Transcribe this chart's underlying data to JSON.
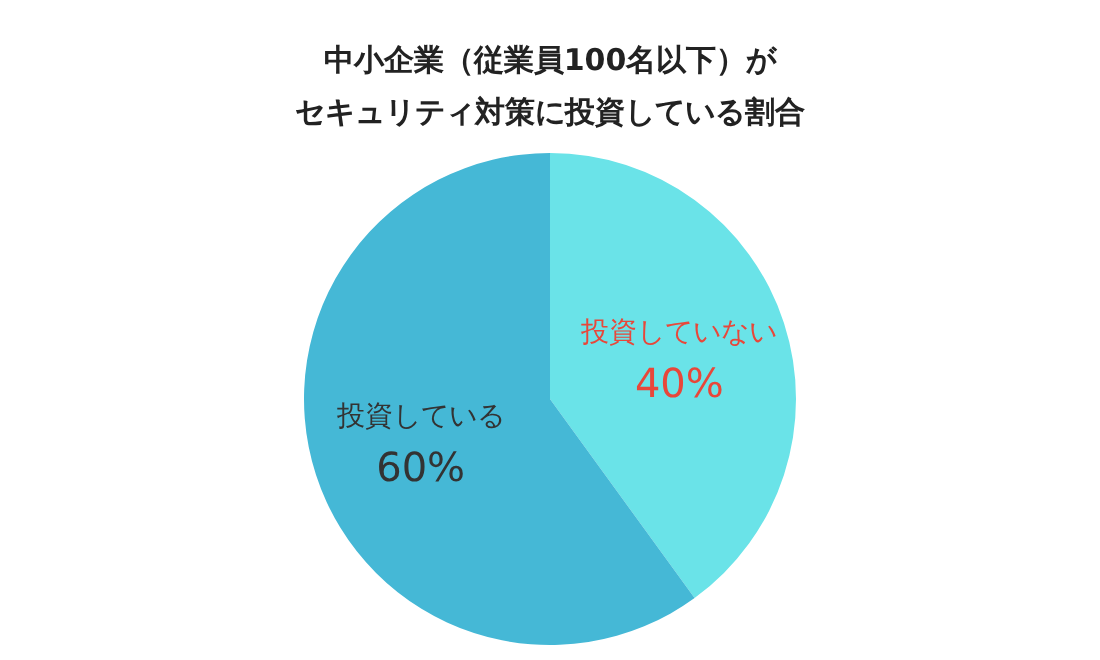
{
  "chart_data": {
    "type": "pie",
    "title": [
      "中小企業（従業員100名以下）が",
      "セキュリティ対策に投資している割合"
    ],
    "categories": [
      "投資していない",
      "投資している"
    ],
    "values": [
      40,
      60
    ],
    "colors": [
      "#6ae3e8",
      "#45b8d6"
    ],
    "value_labels": [
      "40%",
      "60%"
    ]
  }
}
